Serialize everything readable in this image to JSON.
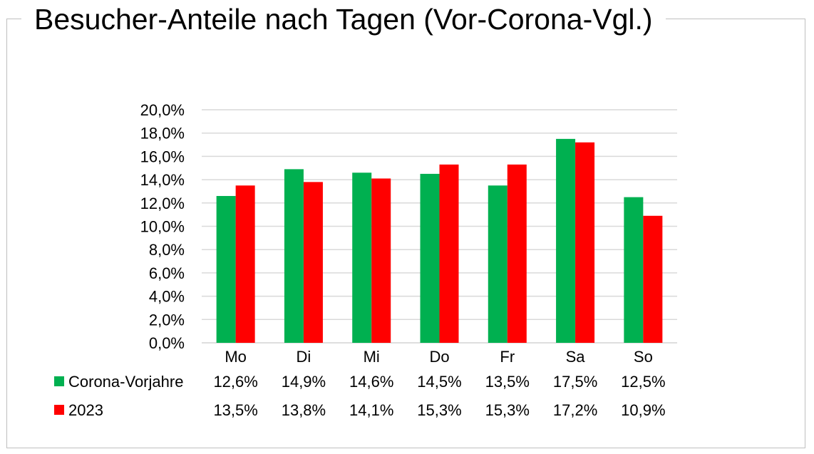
{
  "title": "Besucher-Anteile nach Tagen (Vor-Corona-Vgl.)",
  "chart_data": {
    "type": "bar",
    "categories": [
      "Mo",
      "Di",
      "Mi",
      "Do",
      "Fr",
      "Sa",
      "So"
    ],
    "series": [
      {
        "name": "Corona-Vorjahre",
        "color": "#00b050",
        "values": [
          12.6,
          14.9,
          14.6,
          14.5,
          13.5,
          17.5,
          12.5
        ],
        "labels": [
          "12,6%",
          "14,9%",
          "14,6%",
          "14,5%",
          "13,5%",
          "17,5%",
          "12,5%"
        ]
      },
      {
        "name": "2023",
        "color": "#ff0000",
        "values": [
          13.5,
          13.8,
          14.1,
          15.3,
          15.3,
          17.2,
          10.9
        ],
        "labels": [
          "13,5%",
          "13,8%",
          "14,1%",
          "15,3%",
          "15,3%",
          "17,2%",
          "10,9%"
        ]
      }
    ],
    "y_ticks": [
      "0,0%",
      "2,0%",
      "4,0%",
      "6,0%",
      "8,0%",
      "10,0%",
      "12,0%",
      "14,0%",
      "16,0%",
      "18,0%",
      "20,0%"
    ],
    "ylim": [
      0,
      20
    ],
    "grid": true,
    "legend": "data table below chart"
  }
}
